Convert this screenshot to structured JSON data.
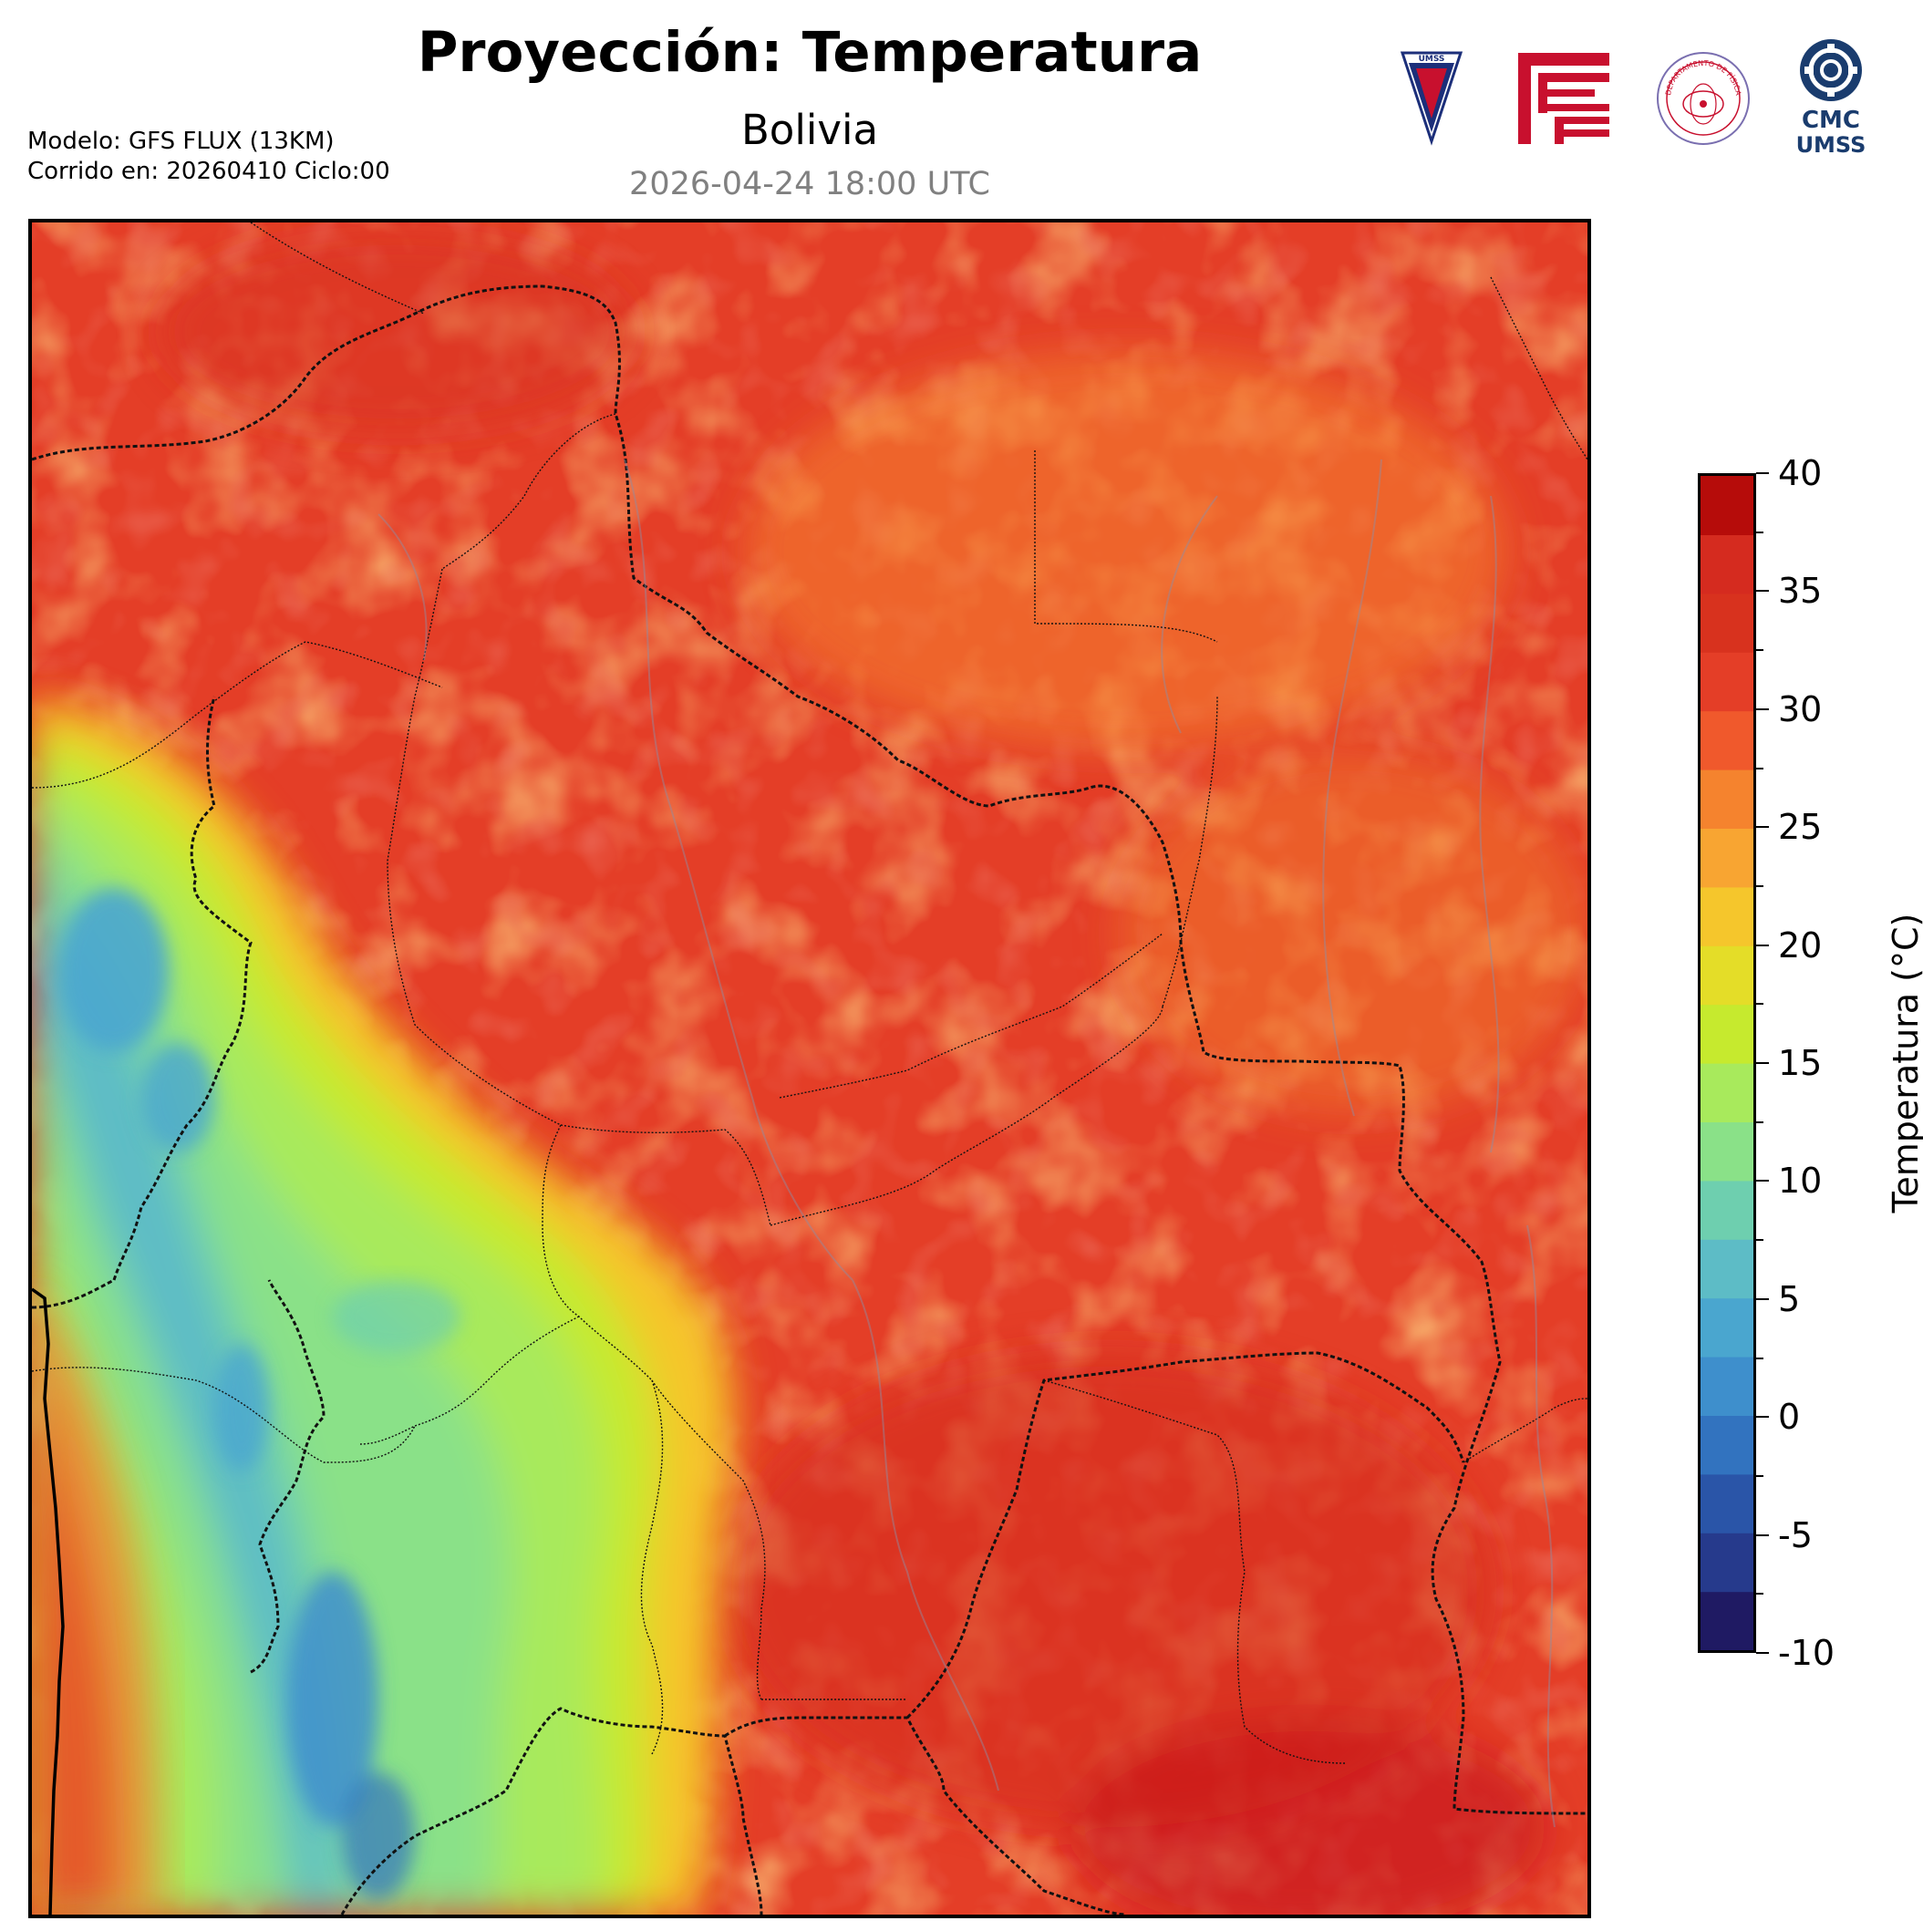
{
  "header": {
    "title": "Proyección: Temperatura",
    "region": "Bolivia",
    "valid_time": "2026-04-24 18:00 UTC",
    "model_line": "Modelo: GFS FLUX (13KM)",
    "run_line": "Corrido en: 20260410 Ciclo:00"
  },
  "logos": [
    {
      "name": "umss-shield",
      "text": "UMSS"
    },
    {
      "name": "faculty-logo",
      "text": ""
    },
    {
      "name": "departamento-fisica-seal",
      "text": "DEPARTAMENTO DE FÍSICA"
    },
    {
      "name": "cmc-umss-logo",
      "text": "CMC UMSS"
    }
  ],
  "colorbar": {
    "label": "Temperatura (°C)",
    "min": -10,
    "max": 40,
    "step": 2.5,
    "tick_labels": [
      "40",
      "35",
      "30",
      "25",
      "20",
      "15",
      "10",
      "5",
      "0",
      "-5",
      "-10"
    ],
    "colors": [
      "#1f1a63",
      "#263a8c",
      "#2a55a8",
      "#3273bf",
      "#3e8fcc",
      "#4aa6cf",
      "#5dbcc6",
      "#6ecfaf",
      "#8ae188",
      "#a8ea5c",
      "#c6ea2e",
      "#e4dd28",
      "#f5c62c",
      "#f8a532",
      "#f5832e",
      "#f0592c",
      "#e43e27",
      "#d8321e",
      "#d52b1f",
      "#b60c0a"
    ]
  },
  "map": {
    "variable": "Temperatura",
    "units": "°C",
    "field_range": [
      -2,
      37
    ]
  }
}
